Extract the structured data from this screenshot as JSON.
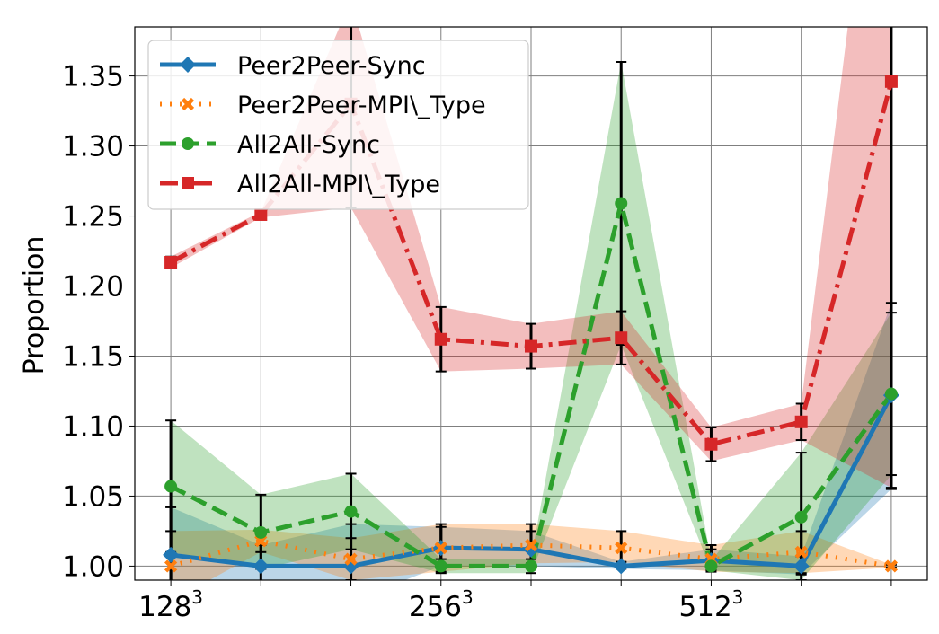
{
  "chart_data": {
    "type": "line",
    "title": "",
    "xlabel": "",
    "ylabel": "Proportion",
    "ylim": [
      0.99,
      1.385
    ],
    "xlim": [
      -0.4,
      8.4
    ],
    "grid": true,
    "legend_position": "top-left",
    "x": [
      0,
      1,
      2,
      3,
      4,
      5,
      6,
      7,
      8
    ],
    "x_ticks": [
      {
        "x": 0,
        "base": "128",
        "exp": "3"
      },
      {
        "x": 3,
        "base": "256",
        "exp": "3"
      },
      {
        "x": 6,
        "base": "512",
        "exp": "3"
      }
    ],
    "y_ticks": [
      {
        "value": 1.0,
        "label": "1.00"
      },
      {
        "value": 1.05,
        "label": "1.05"
      },
      {
        "value": 1.1,
        "label": "1.10"
      },
      {
        "value": 1.15,
        "label": "1.15"
      },
      {
        "value": 1.2,
        "label": "1.20"
      },
      {
        "value": 1.25,
        "label": "1.25"
      },
      {
        "value": 1.3,
        "label": "1.30"
      },
      {
        "value": 1.35,
        "label": "1.35"
      }
    ],
    "series": [
      {
        "name": "Peer2Peer-Sync",
        "color": "#1f77b4",
        "line_style": "solid",
        "marker": "diamond",
        "values": [
          1.008,
          1.0,
          1.0,
          1.013,
          1.012,
          1.0,
          1.004,
          1.0,
          1.122
        ],
        "lower": [
          0.975,
          0.985,
          0.975,
          1.0,
          1.0,
          0.998,
          0.997,
          0.994,
          1.055
        ],
        "upper": [
          1.042,
          1.015,
          1.03,
          1.028,
          1.025,
          1.003,
          1.012,
          1.007,
          1.188
        ]
      },
      {
        "name": "Peer2Peer-MPI\\_Type",
        "color": "#ff7f0e",
        "line_style": "dotted",
        "marker": "x",
        "values": [
          1.0,
          1.018,
          1.005,
          1.013,
          1.015,
          1.013,
          1.005,
          1.01,
          1.0
        ],
        "lower": [
          0.975,
          1.01,
          0.99,
          0.996,
          1.002,
          1.003,
          0.996,
          0.995,
          0.999
        ],
        "upper": [
          1.025,
          1.026,
          1.02,
          1.03,
          1.03,
          1.025,
          1.015,
          1.025,
          1.001
        ]
      },
      {
        "name": "All2All-Sync",
        "color": "#2ca02c",
        "line_style": "dashed",
        "marker": "circle",
        "values": [
          1.057,
          1.024,
          1.039,
          1.0,
          1.0,
          1.259,
          1.0,
          1.035,
          1.123
        ],
        "lower": [
          1.01,
          0.998,
          1.012,
          0.995,
          0.995,
          1.158,
          0.997,
          0.99,
          1.065
        ],
        "upper": [
          1.104,
          1.051,
          1.066,
          1.005,
          1.005,
          1.36,
          1.004,
          1.081,
          1.181
        ]
      },
      {
        "name": "All2All-MPI\\_Type",
        "color": "#d62728",
        "line_style": "dashdot",
        "marker": "square",
        "values": [
          1.217,
          1.251,
          1.33,
          1.162,
          1.157,
          1.163,
          1.087,
          1.103,
          1.346
        ],
        "lower": [
          1.213,
          1.249,
          1.256,
          1.139,
          1.141,
          1.144,
          1.075,
          1.09,
          1.056
        ],
        "upper": [
          1.221,
          1.253,
          1.404,
          1.185,
          1.173,
          1.182,
          1.099,
          1.116,
          1.636
        ]
      }
    ]
  }
}
